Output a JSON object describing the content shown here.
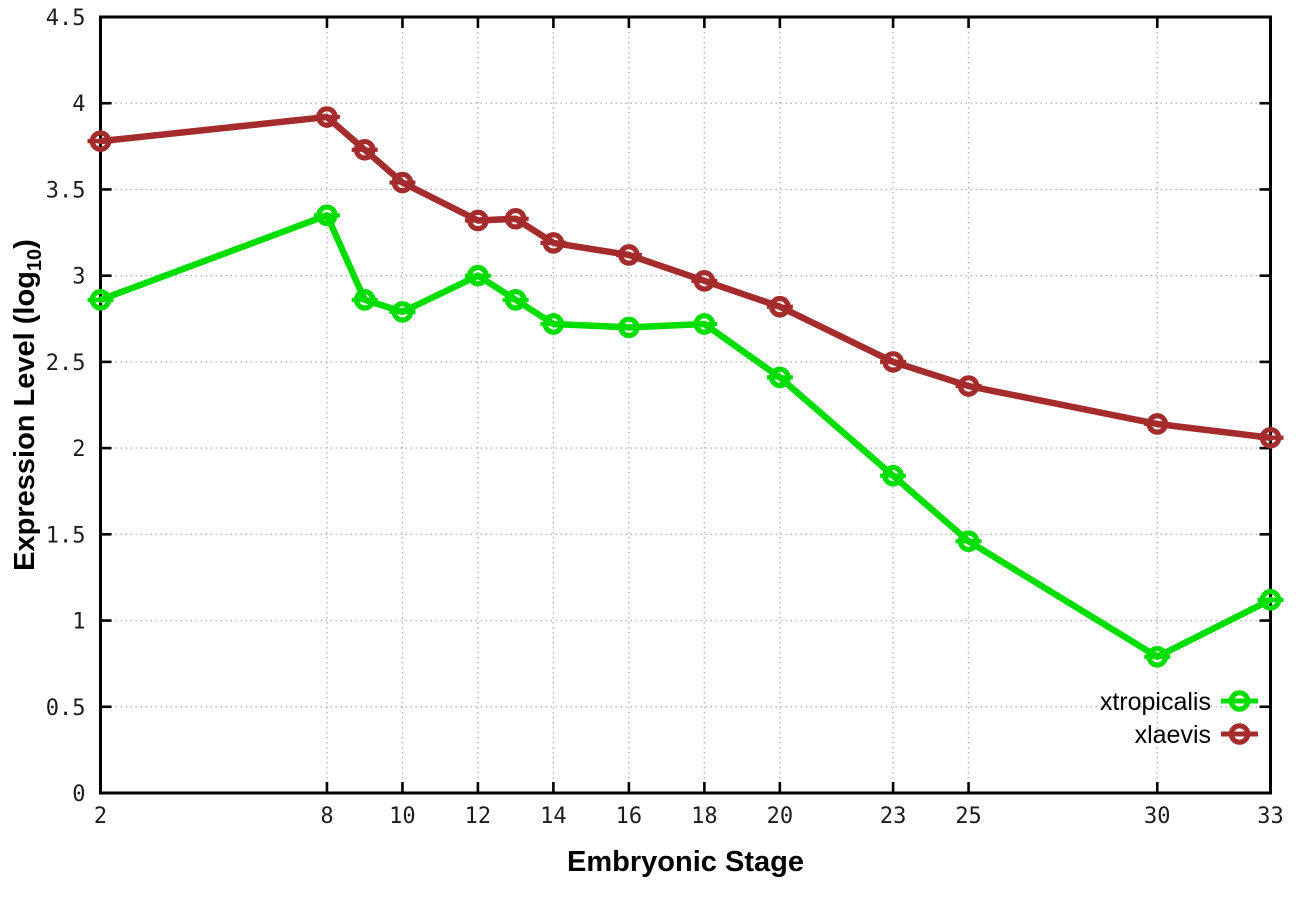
{
  "chart_data": {
    "type": "line",
    "title": "",
    "xlabel": "Embryonic Stage",
    "ylabel": "Expression Level (log10)",
    "ylabel_parts": {
      "pre": "Expression Level (log",
      "sub": "10",
      "post": ")"
    },
    "x": [
      2,
      8,
      9,
      10,
      12,
      13,
      14,
      16,
      18,
      20,
      23,
      25,
      30,
      33
    ],
    "xticks": [
      2,
      8,
      10,
      12,
      14,
      16,
      18,
      20,
      23,
      25,
      30,
      33
    ],
    "yticks": [
      0,
      0.5,
      1,
      1.5,
      2,
      2.5,
      3,
      3.5,
      4,
      4.5
    ],
    "xlim": [
      2,
      33
    ],
    "ylim": [
      0,
      4.5
    ],
    "grid": true,
    "legend_position": "bottom-right",
    "marker": "open-circle-with-errorbar-cap",
    "series": [
      {
        "name": "xtropicalis",
        "color": "#00dd00",
        "values": [
          2.86,
          3.35,
          2.86,
          2.79,
          3.0,
          2.86,
          2.72,
          2.7,
          2.72,
          2.41,
          1.84,
          1.46,
          0.79,
          1.12
        ]
      },
      {
        "name": "xlaevis",
        "color": "#a52c2c",
        "values": [
          3.78,
          3.92,
          3.73,
          3.54,
          3.32,
          3.33,
          3.19,
          3.12,
          2.97,
          2.82,
          2.5,
          2.36,
          2.14,
          2.06
        ]
      }
    ],
    "colors": {
      "grid": "#b4b4b4",
      "border": "#000000",
      "background": "#ffffff"
    }
  }
}
